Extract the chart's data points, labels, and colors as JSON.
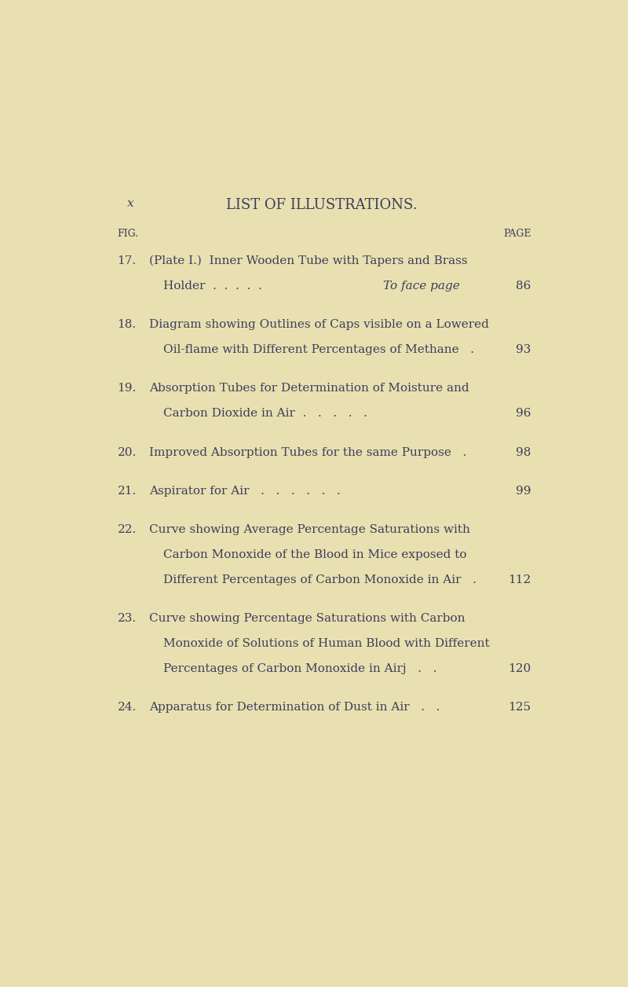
{
  "background_color": "#e8e0b0",
  "page_label": "x",
  "title": "LIST OF ILLUSTRATIONS.",
  "col_fig_label": "FIG.",
  "col_page_label": "PAGE",
  "entries": [
    {
      "num": "17.",
      "line1": "(Plate I.)  Inner Wooden Tube with Tapers and Brass",
      "line2_normal": "Holder  .  .  .  .  .",
      "line2_italic": "To face page",
      "line3": null,
      "page": "86",
      "has_italic": true
    },
    {
      "num": "18.",
      "line1": "Diagram showing Outlines of Caps visible on a Lowered",
      "line2_normal": "Oil-flame with Different Percentages of Methane   .",
      "line2_italic": null,
      "line3": null,
      "page": "93",
      "has_italic": false
    },
    {
      "num": "19.",
      "line1": "Absorption Tubes for Determination of Moisture and",
      "line2_normal": "Carbon Dioxide in Air  .   .   .   .   .",
      "line2_italic": null,
      "line3": null,
      "page": "96",
      "has_italic": false
    },
    {
      "num": "20.",
      "line1": "Improved Absorption Tubes for the same Purpose   .",
      "line2_normal": null,
      "line2_italic": null,
      "line3": null,
      "page": "98",
      "has_italic": false
    },
    {
      "num": "21.",
      "line1": "Aspirator for Air   .   .   .   .   .   .",
      "line2_normal": null,
      "line2_italic": null,
      "line3": null,
      "page": "99",
      "has_italic": false
    },
    {
      "num": "22.",
      "line1": "Curve showing Average Percentage Saturations with",
      "line2_normal": "Carbon Monoxide of the Blood in Mice exposed to",
      "line2_italic": null,
      "line3": "Different Percentages of Carbon Monoxide in Air   .",
      "page": "112",
      "has_italic": false
    },
    {
      "num": "23.",
      "line1": "Curve showing Percentage Saturations with Carbon",
      "line2_normal": "Monoxide of Solutions of Human Blood with Different",
      "line2_italic": null,
      "line3": "Percentages of Carbon Monoxide in Airj   .   .",
      "page": "120",
      "has_italic": false
    },
    {
      "num": "24.",
      "line1": "Apparatus for Determination of Dust in Air   .   .",
      "line2_normal": null,
      "line2_italic": null,
      "line3": null,
      "page": "125",
      "has_italic": false
    }
  ],
  "text_color": "#3d3d5c",
  "font_size_title": 13,
  "font_size_header": 9,
  "font_size_body": 11
}
